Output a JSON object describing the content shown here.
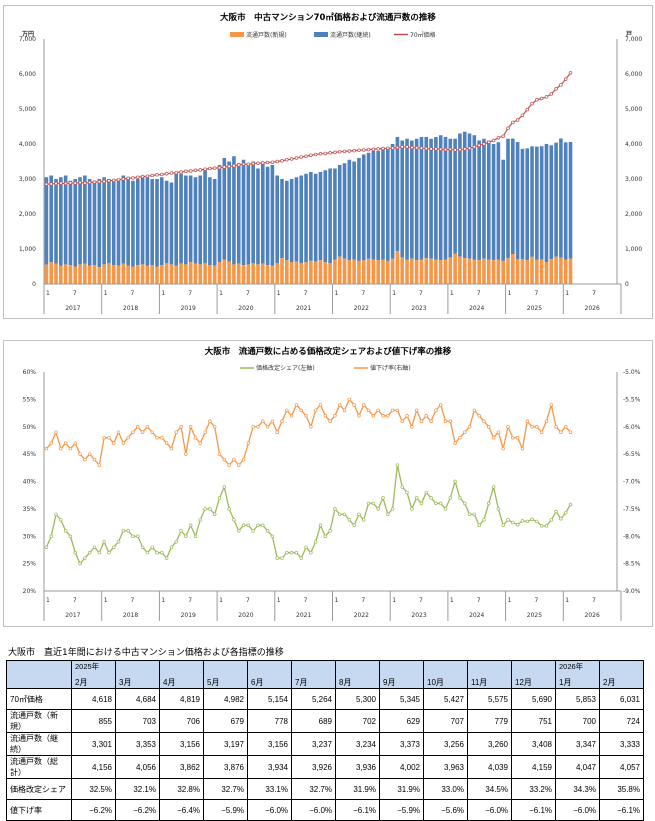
{
  "chart_data": [
    {
      "type": "bar+line",
      "title": "大阪市　中古マンション70㎡価格および流通戸数の推移",
      "ylabel_left": "万円",
      "ylabel_right": "戸",
      "ylim_left": [
        0,
        7000
      ],
      "ylim_right": [
        0,
        7000
      ],
      "yticks": [
        "0",
        "1,000",
        "2,000",
        "3,000",
        "4,000",
        "5,000",
        "6,000",
        "7,000"
      ],
      "legend": [
        "流通戸数(新規)",
        "流通戸数(継続)",
        "70㎡価格"
      ],
      "month_ticks": [
        "1",
        "7"
      ],
      "years": [
        "2017",
        "2018",
        "2019",
        "2020",
        "2021",
        "2022",
        "2023",
        "2024",
        "2025",
        "2026"
      ],
      "start": "2017-01",
      "series": {
        "price": [
          2850,
          2860,
          2870,
          2880,
          2870,
          2890,
          2880,
          2900,
          2880,
          2900,
          2910,
          2920,
          2930,
          2950,
          2960,
          2980,
          3000,
          3020,
          3030,
          3050,
          3070,
          3080,
          3100,
          3120,
          3130,
          3150,
          3170,
          3180,
          3200,
          3220,
          3230,
          3250,
          3260,
          3280,
          3300,
          3310,
          3320,
          3340,
          3360,
          3380,
          3400,
          3420,
          3420,
          3440,
          3450,
          3460,
          3470,
          3480,
          3500,
          3520,
          3550,
          3570,
          3600,
          3630,
          3650,
          3680,
          3700,
          3720,
          3730,
          3750,
          3760,
          3780,
          3790,
          3800,
          3810,
          3820,
          3830,
          3840,
          3850,
          3860,
          3870,
          3880,
          3880,
          3900,
          3920,
          3920,
          3900,
          3890,
          3880,
          3870,
          3860,
          3860,
          3850,
          3840,
          3850,
          3830,
          3840,
          3860,
          3880,
          3920,
          3960,
          4000,
          4050,
          4100,
          4180,
          4220,
          4450,
          4618,
          4684,
          4819,
          4982,
          5154,
          5264,
          5300,
          5345,
          5427,
          5575,
          5690,
          5853,
          6031
        ],
        "total": [
          3050,
          3100,
          3000,
          3050,
          3100,
          2950,
          3000,
          3050,
          3100,
          3000,
          2950,
          3000,
          3050,
          3000,
          2950,
          3000,
          3100,
          3050,
          2950,
          3000,
          3100,
          3050,
          3000,
          3000,
          3050,
          2950,
          2900,
          3200,
          3150,
          3100,
          3100,
          3050,
          3100,
          3250,
          3050,
          3000,
          3400,
          3600,
          3500,
          3650,
          3450,
          3550,
          3400,
          3500,
          3300,
          3450,
          3350,
          3400,
          3100,
          3000,
          2950,
          3000,
          3050,
          3100,
          3150,
          3200,
          3150,
          3200,
          3250,
          3300,
          3300,
          3400,
          3450,
          3550,
          3500,
          3600,
          3700,
          3750,
          3800,
          3800,
          3850,
          3900,
          4000,
          4200,
          4100,
          4150,
          4100,
          4150,
          4200,
          4200,
          4150,
          4200,
          4250,
          4200,
          4150,
          4150,
          4300,
          4350,
          4300,
          4250,
          4100,
          4150,
          4100,
          4000,
          4050,
          3550,
          4150,
          4156,
          4056,
          3862,
          3876,
          3934,
          3926,
          3936,
          4002,
          3963,
          4039,
          4159,
          4047,
          4057
        ],
        "new": [
          550,
          620,
          580,
          520,
          560,
          540,
          500,
          560,
          580,
          520,
          540,
          480,
          560,
          600,
          540,
          520,
          580,
          520,
          500,
          540,
          560,
          520,
          540,
          500,
          540,
          600,
          560,
          520,
          580,
          560,
          620,
          580,
          560,
          600,
          540,
          520,
          620,
          700,
          640,
          560,
          580,
          540,
          560,
          600,
          560,
          580,
          540,
          520,
          600,
          740,
          680,
          620,
          640,
          600,
          620,
          660,
          640,
          680,
          620,
          600,
          700,
          780,
          720,
          680,
          700,
          660,
          680,
          720,
          700,
          680,
          700,
          660,
          720,
          940,
          760,
          700,
          720,
          680,
          700,
          740,
          720,
          700,
          680,
          700,
          760,
          860,
          780,
          740,
          720,
          700,
          680,
          720,
          700,
          680,
          700,
          660,
          740,
          855,
          703,
          706,
          679,
          778,
          689,
          702,
          629,
          707,
          779,
          751,
          700,
          724
        ]
      }
    },
    {
      "type": "line",
      "title": "大阪市　流通戸数に占める価格改定シェアおよび値下げ率の推移",
      "legend": [
        "価格改定シェア(左軸)",
        "値下げ率(右軸)"
      ],
      "ylim_left": [
        20,
        60
      ],
      "ylim_right": [
        -9,
        -5
      ],
      "yticks_left": [
        "20%",
        "25%",
        "30%",
        "35%",
        "40%",
        "45%",
        "50%",
        "55%",
        "60%"
      ],
      "yticks_right": [
        "-9.0%",
        "-8.5%",
        "-8.0%",
        "-7.5%",
        "-7.0%",
        "-6.5%",
        "-6.0%",
        "-5.5%",
        "-5.0%"
      ],
      "series": {
        "share": [
          28,
          30,
          34,
          33,
          31,
          30,
          27,
          25,
          26,
          27,
          28,
          27,
          29,
          27,
          28,
          29,
          31,
          31,
          30,
          30,
          28,
          27,
          28,
          27,
          27,
          26,
          28,
          29,
          31,
          30,
          32,
          30,
          33,
          35,
          35,
          34,
          37,
          39,
          35,
          33,
          31,
          32,
          32,
          31,
          32,
          32,
          31,
          30,
          26,
          26,
          27,
          27,
          27,
          26,
          28,
          27,
          29,
          32,
          30,
          31,
          35,
          34,
          34,
          33,
          32,
          34,
          33,
          36,
          36,
          35,
          37,
          34,
          35,
          43,
          39,
          38,
          35,
          37,
          36,
          38,
          37,
          36,
          36,
          35,
          37,
          40,
          37,
          36,
          34,
          34,
          32,
          33,
          36,
          39,
          35,
          32,
          33,
          32.5,
          32.1,
          32.8,
          32.7,
          33.1,
          32.7,
          31.9,
          31.9,
          33.0,
          34.5,
          33.2,
          34.3,
          35.8
        ],
        "discount": [
          -6.4,
          -6.3,
          -6.1,
          -6.4,
          -6.3,
          -6.4,
          -6.3,
          -6.5,
          -6.6,
          -6.5,
          -6.6,
          -6.7,
          -6.2,
          -6.2,
          -6.3,
          -6.1,
          -6.3,
          -6.2,
          -6.1,
          -6.0,
          -6.1,
          -6.0,
          -6.1,
          -6.2,
          -6.2,
          -6.3,
          -6.4,
          -6.1,
          -6.0,
          -6.5,
          -6.0,
          -6.2,
          -6.3,
          -6.1,
          -5.9,
          -6.0,
          -6.5,
          -6.6,
          -6.7,
          -6.6,
          -6.7,
          -6.6,
          -6.3,
          -6.0,
          -6.0,
          -5.9,
          -6.0,
          -5.9,
          -6.1,
          -5.9,
          -5.7,
          -5.8,
          -5.6,
          -5.7,
          -5.8,
          -6.0,
          -5.7,
          -5.6,
          -5.8,
          -5.9,
          -5.8,
          -5.6,
          -5.7,
          -5.5,
          -5.6,
          -5.8,
          -5.6,
          -5.7,
          -5.8,
          -5.7,
          -5.8,
          -5.8,
          -5.7,
          -5.7,
          -5.9,
          -5.8,
          -6.0,
          -5.7,
          -5.9,
          -5.8,
          -5.9,
          -5.7,
          -5.6,
          -5.9,
          -5.9,
          -6.3,
          -6.2,
          -6.1,
          -6.0,
          -5.7,
          -5.8,
          -5.9,
          -6.0,
          -6.2,
          -6.1,
          -6.4,
          -6.0,
          -6.2,
          -6.2,
          -6.4,
          -5.9,
          -6.0,
          -6.0,
          -6.1,
          -5.9,
          -5.6,
          -6.0,
          -6.1,
          -6.0,
          -6.1
        ]
      }
    }
  ],
  "table": {
    "title": "大阪市　直近1年間における中古マンション価格および各指標の推移",
    "columns": [
      {
        "year": "2025年",
        "month": "2月"
      },
      {
        "year": "",
        "month": "3月"
      },
      {
        "year": "",
        "month": "4月"
      },
      {
        "year": "",
        "month": "5月"
      },
      {
        "year": "",
        "month": "6月"
      },
      {
        "year": "",
        "month": "7月"
      },
      {
        "year": "",
        "month": "8月"
      },
      {
        "year": "",
        "month": "9月"
      },
      {
        "year": "",
        "month": "10月"
      },
      {
        "year": "",
        "month": "11月"
      },
      {
        "year": "",
        "month": "12月"
      },
      {
        "year": "2026年",
        "month": "1月"
      },
      {
        "year": "",
        "month": "2月"
      }
    ],
    "rows": [
      {
        "label": "70㎡価格",
        "values": [
          "4,618",
          "4,684",
          "4,819",
          "4,982",
          "5,154",
          "5,264",
          "5,300",
          "5,345",
          "5,427",
          "5,575",
          "5,690",
          "5,853",
          "6,031"
        ]
      },
      {
        "label": "流通戸数（新規）",
        "values": [
          "855",
          "703",
          "706",
          "679",
          "778",
          "689",
          "702",
          "629",
          "707",
          "779",
          "751",
          "700",
          "724"
        ]
      },
      {
        "label": "流通戸数（継続）",
        "values": [
          "3,301",
          "3,353",
          "3,156",
          "3,197",
          "3,156",
          "3,237",
          "3,234",
          "3,373",
          "3,256",
          "3,260",
          "3,408",
          "3,347",
          "3,333"
        ]
      },
      {
        "label": "流通戸数（総計）",
        "values": [
          "4,156",
          "4,056",
          "3,862",
          "3,876",
          "3,934",
          "3,926",
          "3,936",
          "4,002",
          "3,963",
          "4,039",
          "4,159",
          "4,047",
          "4,057"
        ]
      },
      {
        "label": "価格改定シェア",
        "values": [
          "32.5%",
          "32.1%",
          "32.8%",
          "32.7%",
          "33.1%",
          "32.7%",
          "31.9%",
          "31.9%",
          "33.0%",
          "34.5%",
          "33.2%",
          "34.3%",
          "35.8%"
        ]
      },
      {
        "label": "値下げ率",
        "values": [
          "−6.2%",
          "−6.2%",
          "−6.4%",
          "−5.9%",
          "−6.0%",
          "−6.0%",
          "−6.1%",
          "−5.9%",
          "−5.6%",
          "−6.0%",
          "−6.1%",
          "−6.0%",
          "−6.1%"
        ]
      }
    ]
  },
  "colors": {
    "new": "#f79646",
    "cont": "#4f81bd",
    "price": "#c0504d",
    "share": "#9bbb59",
    "discount": "#f79646"
  }
}
